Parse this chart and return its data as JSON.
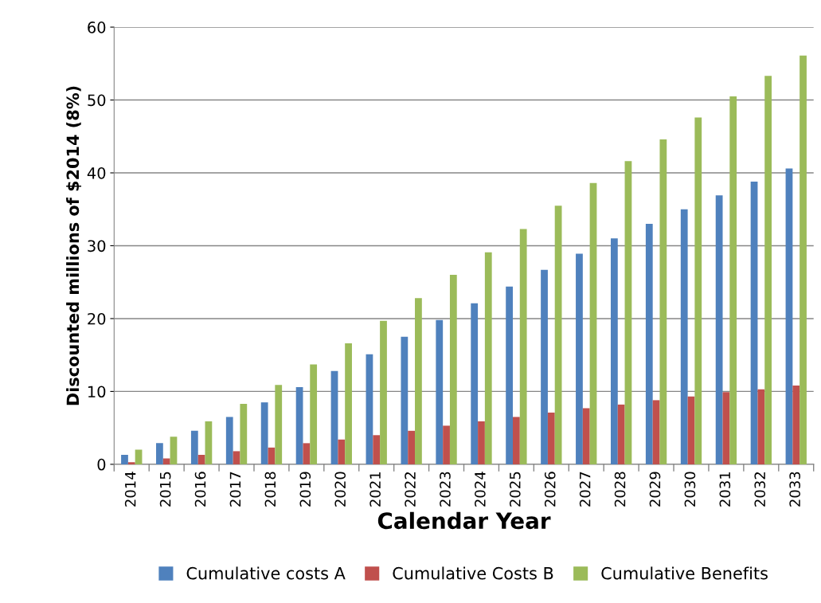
{
  "chart_data": {
    "type": "bar",
    "xlabel": "Calendar Year",
    "ylabel": "Discounted millions of $2014 (8%)",
    "categories": [
      "2014",
      "2015",
      "2016",
      "2017",
      "2018",
      "2019",
      "2020",
      "2021",
      "2022",
      "2023",
      "2024",
      "2025",
      "2026",
      "2027",
      "2028",
      "2029",
      "2030",
      "2031",
      "2032",
      "2033"
    ],
    "series": [
      {
        "name": "Cumulative costs A",
        "color": "#4f81bd",
        "values": [
          1.3,
          2.9,
          4.6,
          6.5,
          8.5,
          10.6,
          12.8,
          15.1,
          17.5,
          19.8,
          22.1,
          24.4,
          26.7,
          28.9,
          31.0,
          33.0,
          35.0,
          36.9,
          38.8,
          40.6
        ]
      },
      {
        "name": "Cumulative Costs B",
        "color": "#c0504d",
        "values": [
          0.3,
          0.8,
          1.3,
          1.8,
          2.3,
          2.9,
          3.4,
          4.0,
          4.6,
          5.3,
          5.9,
          6.5,
          7.1,
          7.7,
          8.2,
          8.8,
          9.3,
          9.9,
          10.3,
          10.8
        ]
      },
      {
        "name": "Cumulative Benefits",
        "color": "#9bbb59",
        "values": [
          2.0,
          3.8,
          5.9,
          8.3,
          10.9,
          13.7,
          16.6,
          19.7,
          22.8,
          26.0,
          29.1,
          32.3,
          35.5,
          38.6,
          41.6,
          44.6,
          47.6,
          50.5,
          53.3,
          56.1
        ]
      }
    ],
    "ylim": [
      0,
      60
    ],
    "yticks": [
      0,
      10,
      20,
      30,
      40,
      50,
      60
    ],
    "grid": "y",
    "legend": "bottom"
  }
}
